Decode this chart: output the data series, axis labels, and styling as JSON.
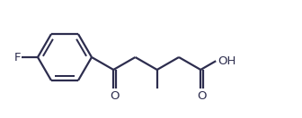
{
  "bg_color": "#ffffff",
  "line_color": "#2d2d4e",
  "text_color": "#2d2d4e",
  "F_label": "F",
  "O_label1": "O",
  "O_label2": "O",
  "OH_label": "OH",
  "line_width": 1.6,
  "font_size": 9.5,
  "fig_width": 3.36,
  "fig_height": 1.32,
  "dpi": 100
}
